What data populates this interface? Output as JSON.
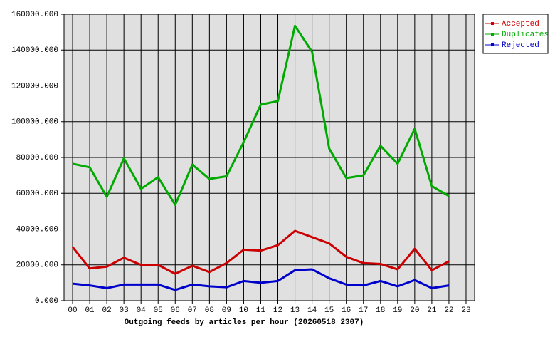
{
  "chart_data": {
    "type": "line",
    "title": "Outgoing feeds by articles per hour (20260518 2307)",
    "categories": [
      "00",
      "01",
      "02",
      "03",
      "04",
      "05",
      "06",
      "07",
      "08",
      "09",
      "10",
      "11",
      "12",
      "13",
      "14",
      "15",
      "16",
      "17",
      "18",
      "19",
      "20",
      "21",
      "22",
      "23"
    ],
    "series": [
      {
        "name": "Accepted",
        "color": "#cc0000",
        "values": [
          30000,
          18000,
          19000,
          24000,
          20000,
          20000,
          15000,
          19500,
          16000,
          21000,
          28500,
          28000,
          31000,
          39000,
          35500,
          32000,
          24500,
          21000,
          20500,
          17500,
          29000,
          17000,
          22000,
          null
        ]
      },
      {
        "name": "Duplicates",
        "color": "#00aa00",
        "values": [
          76500,
          74500,
          58000,
          79500,
          62500,
          69000,
          53500,
          76000,
          68000,
          69500,
          88500,
          109500,
          111500,
          153500,
          139000,
          85000,
          68500,
          70000,
          86500,
          76500,
          96000,
          64000,
          58500,
          null
        ]
      },
      {
        "name": "Rejected",
        "color": "#0000cc",
        "values": [
          9500,
          8500,
          7000,
          9000,
          9000,
          9000,
          6000,
          9000,
          8000,
          7500,
          11000,
          10000,
          11000,
          17000,
          17500,
          12500,
          9000,
          8500,
          11000,
          8000,
          11500,
          7000,
          8500,
          null
        ]
      }
    ],
    "ylim": [
      0,
      160000
    ],
    "yticks": [
      {
        "value": 0,
        "label": "0.000"
      },
      {
        "value": 20000,
        "label": "20000.000"
      },
      {
        "value": 40000,
        "label": "40000.000"
      },
      {
        "value": 60000,
        "label": "60000.000"
      },
      {
        "value": 80000,
        "label": "80000.000"
      },
      {
        "value": 100000,
        "label": "100000.000"
      },
      {
        "value": 120000,
        "label": "120000.000"
      },
      {
        "value": 140000,
        "label": "140000.000"
      },
      {
        "value": 160000,
        "label": "160000.000"
      }
    ],
    "grid": true,
    "legend_position": "top-right"
  }
}
